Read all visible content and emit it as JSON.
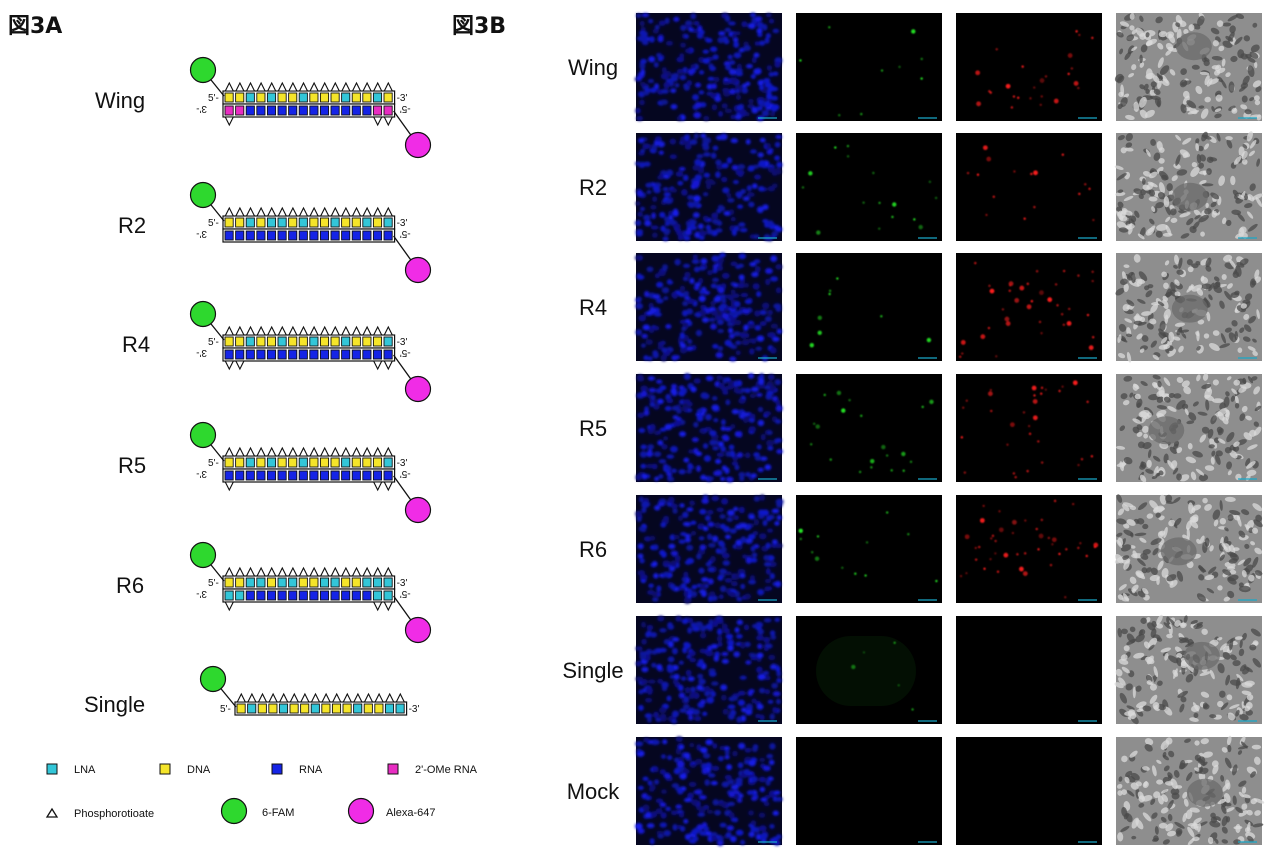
{
  "panel_a": {
    "label": "図3A",
    "five_prime": "5'-",
    "three_prime": "-3'",
    "three_prime_flipped": "3'-",
    "five_prime_flipped": "-5'",
    "constructs": [
      {
        "name": "Wing",
        "top": [
          "D",
          "D",
          "L",
          "D",
          "L",
          "D",
          "D",
          "L",
          "D",
          "D",
          "D",
          "L",
          "D",
          "D",
          "L",
          "D"
        ],
        "bottom": [
          "M",
          "M",
          "R",
          "R",
          "R",
          "R",
          "R",
          "R",
          "R",
          "R",
          "R",
          "R",
          "R",
          "R",
          "M",
          "M"
        ],
        "bottom_tris_left": 1,
        "bottom_tris_right": 2
      },
      {
        "name": "R2",
        "top": [
          "D",
          "D",
          "L",
          "D",
          "L",
          "L",
          "D",
          "L",
          "D",
          "D",
          "L",
          "D",
          "D",
          "L",
          "D",
          "L"
        ],
        "bottom": [
          "R",
          "R",
          "R",
          "R",
          "R",
          "R",
          "R",
          "R",
          "R",
          "R",
          "R",
          "R",
          "R",
          "R",
          "R",
          "R"
        ],
        "bottom_tris_left": 0,
        "bottom_tris_right": 0
      },
      {
        "name": "R4",
        "top": [
          "D",
          "D",
          "L",
          "D",
          "D",
          "L",
          "D",
          "D",
          "L",
          "D",
          "D",
          "L",
          "D",
          "D",
          "D",
          "L"
        ],
        "bottom": [
          "R",
          "R",
          "R",
          "R",
          "R",
          "R",
          "R",
          "R",
          "R",
          "R",
          "R",
          "R",
          "R",
          "R",
          "R",
          "R"
        ],
        "bottom_tris_left": 2,
        "bottom_tris_right": 2
      },
      {
        "name": "R5",
        "top": [
          "D",
          "D",
          "L",
          "D",
          "L",
          "D",
          "D",
          "L",
          "D",
          "D",
          "D",
          "L",
          "D",
          "D",
          "D",
          "L"
        ],
        "bottom": [
          "R",
          "R",
          "R",
          "R",
          "R",
          "R",
          "R",
          "R",
          "R",
          "R",
          "R",
          "R",
          "R",
          "R",
          "R",
          "R"
        ],
        "bottom_tris_left": 1,
        "bottom_tris_right": 2
      },
      {
        "name": "R6",
        "top": [
          "D",
          "D",
          "L",
          "L",
          "D",
          "L",
          "L",
          "D",
          "D",
          "L",
          "L",
          "D",
          "D",
          "L",
          "L",
          "L"
        ],
        "bottom": [
          "L",
          "L",
          "R",
          "R",
          "R",
          "R",
          "R",
          "R",
          "R",
          "R",
          "R",
          "R",
          "R",
          "R",
          "L",
          "L"
        ],
        "bottom_tris_left": 1,
        "bottom_tris_right": 2
      },
      {
        "name": "Single",
        "top": [
          "D",
          "L",
          "D",
          "D",
          "L",
          "D",
          "D",
          "L",
          "D",
          "D",
          "D",
          "L",
          "D",
          "D",
          "L",
          "L"
        ],
        "bottom": [],
        "bottom_tris_left": 0,
        "bottom_tris_right": 0
      }
    ],
    "legend": [
      {
        "key": "L",
        "label": "LNA",
        "color": "#33c6d8"
      },
      {
        "key": "D",
        "label": "DNA",
        "color": "#f5e52a"
      },
      {
        "key": "R",
        "label": "RNA",
        "color": "#1524e6"
      },
      {
        "key": "M",
        "label": "2'-OMe RNA",
        "color": "#e82dc2"
      },
      {
        "key": "T",
        "label": "Phosphorotioate",
        "color": "#ffffff"
      },
      {
        "key": "F",
        "label": "6-FAM",
        "color": "#2ed82e"
      },
      {
        "key": "A",
        "label": "Alexa-647",
        "color": "#f02ce6"
      }
    ]
  },
  "panel_b": {
    "label": "図3B",
    "rows": [
      "Wing",
      "R2",
      "R4",
      "R5",
      "R6",
      "Single",
      "Mock"
    ],
    "green_level": [
      0.35,
      0.6,
      0.3,
      0.75,
      0.45,
      0.2,
      0
    ],
    "red_level": [
      0.55,
      0.35,
      0.85,
      0.7,
      0.95,
      0,
      0
    ],
    "colors": {
      "nuclei": "#1b1fd0",
      "green": "#25e825",
      "red": "#ff1c1c",
      "scalebar": "#19a8c8"
    }
  }
}
